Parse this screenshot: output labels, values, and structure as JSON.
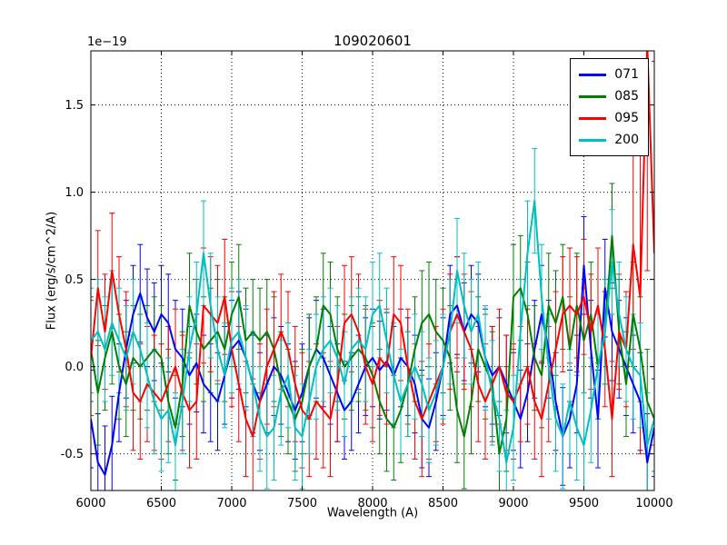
{
  "figure": {
    "title": "109020601",
    "xlabel": "Wavelength (A)",
    "ylabel": "Flux (erg/s/cm^2/A)",
    "offset_label": "1e−19"
  },
  "chart_data": {
    "type": "line",
    "title": "109020601",
    "xlabel": "Wavelength (A)",
    "ylabel": "Flux (erg/s/cm^2/A)",
    "y_scale_label": "1e-19",
    "grid": true,
    "legend_position": "upper right",
    "xlim": [
      6000,
      10000
    ],
    "ylim": [
      -0.71,
      1.81
    ],
    "xticks": [
      6000,
      6500,
      7000,
      7500,
      8000,
      8500,
      9000,
      9500,
      10000
    ],
    "yticks": [
      -0.5,
      0.0,
      0.5,
      1.0,
      1.5
    ],
    "x": [
      6000,
      6050,
      6100,
      6150,
      6200,
      6250,
      6300,
      6350,
      6400,
      6450,
      6500,
      6550,
      6600,
      6650,
      6700,
      6750,
      6800,
      6850,
      6900,
      6950,
      7000,
      7050,
      7100,
      7150,
      7200,
      7250,
      7300,
      7350,
      7400,
      7450,
      7500,
      7550,
      7600,
      7650,
      7700,
      7750,
      7800,
      7850,
      7900,
      7950,
      8000,
      8050,
      8100,
      8150,
      8200,
      8250,
      8300,
      8350,
      8400,
      8450,
      8500,
      8550,
      8600,
      8650,
      8700,
      8750,
      8800,
      8850,
      8900,
      8950,
      9000,
      9050,
      9100,
      9150,
      9200,
      9250,
      9300,
      9350,
      9400,
      9450,
      9500,
      9550,
      9600,
      9650,
      9700,
      9750,
      9800,
      9850,
      9900,
      9950,
      10000
    ],
    "series": [
      {
        "name": "071",
        "color": "#0000ff",
        "err": 0.28,
        "values": [
          -0.3,
          -0.55,
          -0.62,
          -0.45,
          -0.15,
          0.1,
          0.3,
          0.42,
          0.28,
          0.2,
          0.3,
          0.25,
          0.1,
          0.05,
          -0.05,
          0.02,
          -0.1,
          -0.15,
          -0.2,
          -0.05,
          0.1,
          0.15,
          0.05,
          -0.1,
          -0.2,
          -0.1,
          0.0,
          -0.05,
          -0.15,
          -0.25,
          -0.15,
          0.0,
          0.1,
          0.05,
          -0.05,
          -0.15,
          -0.25,
          -0.2,
          -0.1,
          0.0,
          0.05,
          -0.02,
          0.03,
          -0.05,
          0.05,
          0.0,
          -0.1,
          -0.3,
          -0.35,
          -0.2,
          0.0,
          0.3,
          0.35,
          0.2,
          0.3,
          0.25,
          0.05,
          -0.05,
          0.0,
          -0.1,
          -0.2,
          -0.3,
          -0.15,
          0.1,
          0.3,
          0.1,
          -0.2,
          -0.4,
          -0.3,
          -0.1,
          0.58,
          0.1,
          -0.3,
          0.45,
          0.2,
          0.1,
          0.0,
          -0.1,
          -0.2,
          -0.55,
          -0.35
        ]
      },
      {
        "name": "085",
        "color": "#008000",
        "err": 0.3,
        "values": [
          0.1,
          -0.15,
          0.05,
          0.2,
          0.0,
          -0.1,
          0.05,
          0.0,
          0.05,
          0.1,
          0.05,
          -0.2,
          -0.35,
          -0.1,
          0.35,
          0.2,
          0.1,
          0.15,
          0.2,
          0.1,
          0.3,
          0.4,
          0.15,
          0.2,
          0.15,
          0.2,
          0.1,
          -0.1,
          -0.2,
          -0.3,
          -0.2,
          0.0,
          0.1,
          0.35,
          0.3,
          0.1,
          0.0,
          0.05,
          0.1,
          0.05,
          -0.05,
          -0.2,
          -0.3,
          -0.35,
          -0.25,
          -0.1,
          0.1,
          0.25,
          0.3,
          0.2,
          0.15,
          0.05,
          -0.25,
          -0.4,
          -0.2,
          0.1,
          0.0,
          -0.1,
          -0.5,
          -0.3,
          0.4,
          0.45,
          0.3,
          0.05,
          -0.05,
          0.35,
          0.25,
          0.4,
          0.1,
          0.35,
          0.15,
          0.3,
          0.0,
          0.2,
          0.75,
          0.2,
          -0.1,
          0.3,
          0.1,
          -0.2,
          -0.3
        ]
      },
      {
        "name": "095",
        "color": "#ff0000",
        "err": 0.33,
        "err_overrides": {
          "77": 0.6,
          "78": 0.9,
          "79": 1.3,
          "80": 1.1
        },
        "values": [
          0.05,
          0.45,
          0.2,
          0.55,
          0.3,
          0.1,
          -0.15,
          -0.2,
          -0.1,
          -0.15,
          -0.2,
          -0.1,
          0.0,
          -0.15,
          -0.25,
          -0.2,
          0.35,
          0.3,
          0.25,
          0.4,
          0.1,
          -0.1,
          -0.3,
          -0.4,
          -0.2,
          0.0,
          0.1,
          0.2,
          0.1,
          -0.1,
          -0.25,
          -0.3,
          -0.2,
          -0.25,
          -0.3,
          -0.1,
          0.25,
          0.3,
          0.2,
          0.0,
          -0.1,
          0.05,
          0.0,
          0.3,
          0.25,
          0.0,
          -0.2,
          -0.3,
          -0.2,
          -0.1,
          0.0,
          0.2,
          0.3,
          0.2,
          0.1,
          -0.1,
          -0.2,
          -0.1,
          0.0,
          -0.15,
          -0.2,
          -0.1,
          0.0,
          -0.2,
          -0.3,
          -0.1,
          0.1,
          0.3,
          0.35,
          0.3,
          0.4,
          0.2,
          0.35,
          0.1,
          -0.3,
          0.2,
          0.1,
          0.7,
          0.4,
          1.85,
          0.65
        ]
      },
      {
        "name": "200",
        "color": "#00bfbf",
        "err": 0.3,
        "values": [
          0.15,
          0.2,
          0.1,
          0.25,
          0.15,
          0.05,
          0.2,
          0.1,
          -0.05,
          -0.2,
          -0.3,
          -0.25,
          -0.45,
          -0.2,
          0.1,
          0.3,
          0.65,
          0.35,
          0.1,
          -0.05,
          0.15,
          0.2,
          0.05,
          -0.1,
          -0.3,
          -0.4,
          -0.35,
          -0.15,
          -0.05,
          -0.35,
          -0.4,
          -0.2,
          0.0,
          0.1,
          0.15,
          0.05,
          -0.1,
          0.1,
          0.15,
          0.1,
          0.3,
          0.35,
          0.15,
          -0.05,
          -0.2,
          -0.1,
          0.0,
          -0.1,
          -0.25,
          -0.15,
          0.0,
          0.2,
          0.55,
          0.35,
          0.2,
          0.3,
          0.05,
          -0.15,
          -0.3,
          -0.55,
          -0.35,
          0.2,
          0.65,
          0.95,
          0.4,
          0.0,
          -0.3,
          -0.4,
          -0.2,
          -0.35,
          -0.45,
          -0.25,
          0.0,
          0.2,
          0.6,
          0.3,
          0.1,
          0.0,
          -0.05,
          -0.45,
          -0.3
        ]
      }
    ]
  }
}
